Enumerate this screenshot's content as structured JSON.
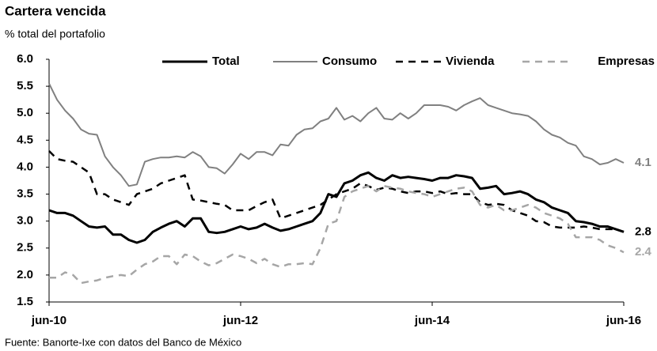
{
  "chart_data": {
    "type": "line",
    "title": "Cartera vencida",
    "subtitle": "% total del portafolio",
    "source": "Fuente: Banorte-Ixe con datos del Banco de México",
    "categories": [
      "jun-10",
      null,
      null,
      null,
      null,
      null,
      null,
      null,
      null,
      null,
      null,
      null,
      null,
      null,
      null,
      null,
      null,
      null,
      null,
      null,
      null,
      null,
      null,
      null,
      "jun-12",
      null,
      null,
      null,
      null,
      null,
      null,
      null,
      null,
      null,
      null,
      null,
      null,
      null,
      null,
      null,
      null,
      null,
      null,
      null,
      null,
      null,
      null,
      null,
      "jun-14",
      null,
      null,
      null,
      null,
      null,
      null,
      null,
      null,
      null,
      null,
      null,
      null,
      null,
      null,
      null,
      null,
      null,
      null,
      null,
      null,
      null,
      null,
      null,
      "jun-16"
    ],
    "ylim": [
      1.5,
      6.0
    ],
    "yticks": [
      {
        "value": 1.5,
        "label": "1.5"
      },
      {
        "value": 2.0,
        "label": "2.0"
      },
      {
        "value": 2.5,
        "label": "2.5"
      },
      {
        "value": 3.0,
        "label": "3.0"
      },
      {
        "value": 3.5,
        "label": "3.5"
      },
      {
        "value": 4.0,
        "label": "4.0"
      },
      {
        "value": 4.5,
        "label": "4.5"
      },
      {
        "value": 5.0,
        "label": "5.0"
      },
      {
        "value": 5.5,
        "label": "5.5"
      },
      {
        "value": 6.0,
        "label": "6.0"
      }
    ],
    "grid": false,
    "legend": "top",
    "series": [
      {
        "name": "Total",
        "color": "#000000",
        "dashed": false,
        "width": 3,
        "last_label": "2.8",
        "values": [
          3.2,
          3.15,
          3.15,
          3.1,
          3.0,
          2.9,
          2.88,
          2.9,
          2.75,
          2.75,
          2.65,
          2.6,
          2.65,
          2.8,
          2.88,
          2.95,
          3.0,
          2.9,
          3.05,
          3.05,
          2.8,
          2.78,
          2.8,
          2.85,
          2.9,
          2.85,
          2.88,
          2.95,
          2.88,
          2.82,
          2.85,
          2.9,
          2.95,
          3.0,
          3.15,
          3.5,
          3.45,
          3.7,
          3.75,
          3.85,
          3.9,
          3.8,
          3.75,
          3.85,
          3.8,
          3.82,
          3.8,
          3.78,
          3.75,
          3.8,
          3.8,
          3.85,
          3.83,
          3.8,
          3.6,
          3.62,
          3.65,
          3.5,
          3.52,
          3.55,
          3.5,
          3.4,
          3.35,
          3.25,
          3.2,
          3.15,
          3.0,
          2.98,
          2.95,
          2.9,
          2.9,
          2.85,
          2.8
        ]
      },
      {
        "name": "Consumo",
        "color": "#808080",
        "dashed": false,
        "width": 2,
        "last_label": "4.1",
        "values": [
          5.55,
          5.25,
          5.05,
          4.9,
          4.7,
          4.62,
          4.6,
          4.2,
          4.0,
          3.85,
          3.65,
          3.68,
          4.1,
          4.15,
          4.18,
          4.18,
          4.2,
          4.18,
          4.28,
          4.2,
          4.0,
          3.98,
          3.88,
          4.05,
          4.25,
          4.15,
          4.28,
          4.28,
          4.22,
          4.42,
          4.4,
          4.6,
          4.7,
          4.72,
          4.85,
          4.9,
          5.1,
          4.88,
          4.95,
          4.85,
          5.0,
          5.1,
          4.9,
          4.88,
          5.0,
          4.9,
          5.0,
          5.15,
          5.15,
          5.15,
          5.12,
          5.05,
          5.15,
          5.22,
          5.28,
          5.15,
          5.1,
          5.05,
          5.0,
          4.98,
          4.95,
          4.85,
          4.7,
          4.6,
          4.55,
          4.45,
          4.4,
          4.2,
          4.15,
          4.05,
          4.08,
          4.15,
          4.08
        ]
      },
      {
        "name": "Vivienda",
        "color": "#000000",
        "dashed": true,
        "width": 2.5,
        "values": [
          4.3,
          4.15,
          4.12,
          4.1,
          4.0,
          3.9,
          3.5,
          3.5,
          3.4,
          3.35,
          3.3,
          3.5,
          3.55,
          3.6,
          3.7,
          3.75,
          3.8,
          3.85,
          3.4,
          3.38,
          3.35,
          3.32,
          3.3,
          3.2,
          3.2,
          3.2,
          3.28,
          3.35,
          3.4,
          3.05,
          3.1,
          3.15,
          3.2,
          3.25,
          3.3,
          3.4,
          3.5,
          3.55,
          3.6,
          3.7,
          3.65,
          3.58,
          3.62,
          3.6,
          3.55,
          3.52,
          3.55,
          3.55,
          3.52,
          3.55,
          3.5,
          3.52,
          3.5,
          3.5,
          3.35,
          3.3,
          3.32,
          3.3,
          3.2,
          3.15,
          3.1,
          3.0,
          2.98,
          2.9,
          2.88,
          2.88,
          2.88,
          2.9,
          2.88,
          2.85,
          2.85,
          2.85,
          2.8
        ]
      },
      {
        "name": "Empresas",
        "color": "#a6a6a6",
        "dashed": true,
        "width": 2.5,
        "last_label": "2.4",
        "values": [
          1.95,
          1.95,
          2.05,
          2.0,
          1.85,
          1.88,
          1.9,
          1.95,
          1.98,
          2.0,
          1.98,
          2.1,
          2.2,
          2.25,
          2.35,
          2.35,
          2.2,
          2.38,
          2.35,
          2.25,
          2.18,
          2.22,
          2.3,
          2.38,
          2.35,
          2.3,
          2.22,
          2.3,
          2.2,
          2.15,
          2.2,
          2.2,
          2.22,
          2.2,
          2.5,
          2.95,
          3.0,
          3.45,
          3.55,
          3.6,
          3.65,
          3.55,
          3.65,
          3.62,
          3.6,
          3.55,
          3.52,
          3.5,
          3.45,
          3.5,
          3.55,
          3.6,
          3.62,
          3.55,
          3.3,
          3.25,
          3.3,
          3.2,
          3.2,
          3.25,
          3.3,
          3.25,
          3.15,
          3.1,
          3.05,
          2.95,
          2.7,
          2.7,
          2.7,
          2.65,
          2.55,
          2.5,
          2.42
        ]
      }
    ]
  }
}
